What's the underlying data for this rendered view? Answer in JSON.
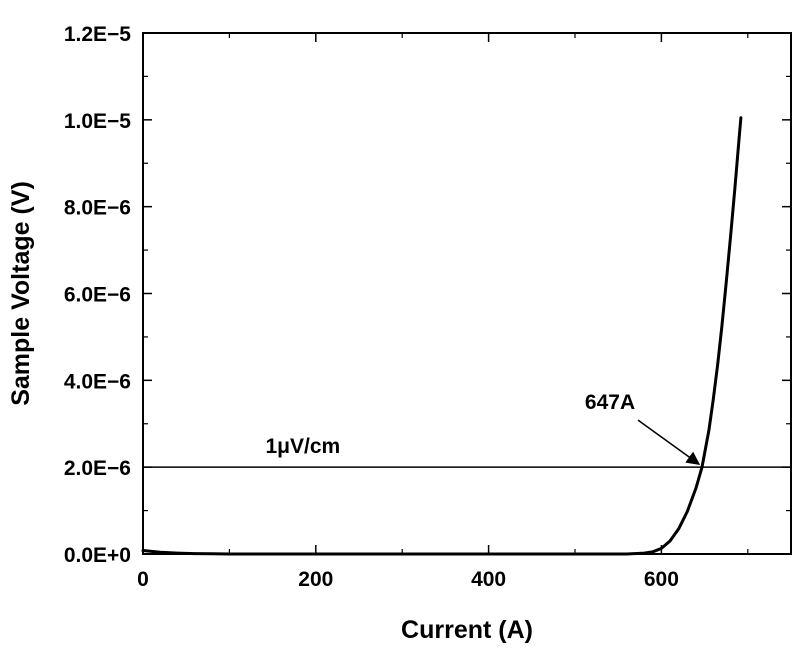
{
  "chart_data": {
    "type": "line",
    "title": "",
    "xlabel": "Current (A)",
    "ylabel": "Sample Voltage (V)",
    "xlim": [
      0,
      750
    ],
    "ylim": [
      0,
      1.2e-05
    ],
    "grid": false,
    "x_ticks": [
      0,
      200,
      400,
      600
    ],
    "x_tick_labels": [
      "0",
      "200",
      "400",
      "600"
    ],
    "y_ticks": [
      0,
      2e-06,
      4e-06,
      6e-06,
      8e-06,
      1e-05,
      1.2e-05
    ],
    "y_tick_labels": [
      "0.0E+0",
      "2.0E−6",
      "4.0E−6",
      "6.0E−6",
      "8.0E−6",
      "1.0E−5",
      "1.2E−5"
    ],
    "series": [
      {
        "x": [
          0,
          10,
          20,
          40,
          60,
          80,
          100,
          200,
          300,
          400,
          500,
          560,
          580,
          590,
          600,
          610,
          620,
          630,
          640,
          647,
          655,
          660,
          665,
          670,
          675,
          680,
          685,
          690,
          692
        ],
        "y": [
          8e-08,
          6e-08,
          4e-08,
          2e-08,
          1e-08,
          5e-09,
          0,
          0,
          0,
          0,
          0,
          0,
          2e-08,
          5e-08,
          1.3e-07,
          3e-07,
          5.8e-07,
          9.8e-07,
          1.52e-06,
          2e-06,
          2.85e-06,
          3.55e-06,
          4.35e-06,
          5.25e-06,
          6.25e-06,
          7.3e-06,
          8.4e-06,
          9.6e-06,
          1.005e-05
        ]
      }
    ],
    "reference_line": {
      "y": 2e-06,
      "label": "1μV/cm"
    },
    "annotations": [
      {
        "text": "647A",
        "x": 647,
        "y": 2e-06
      }
    ]
  }
}
